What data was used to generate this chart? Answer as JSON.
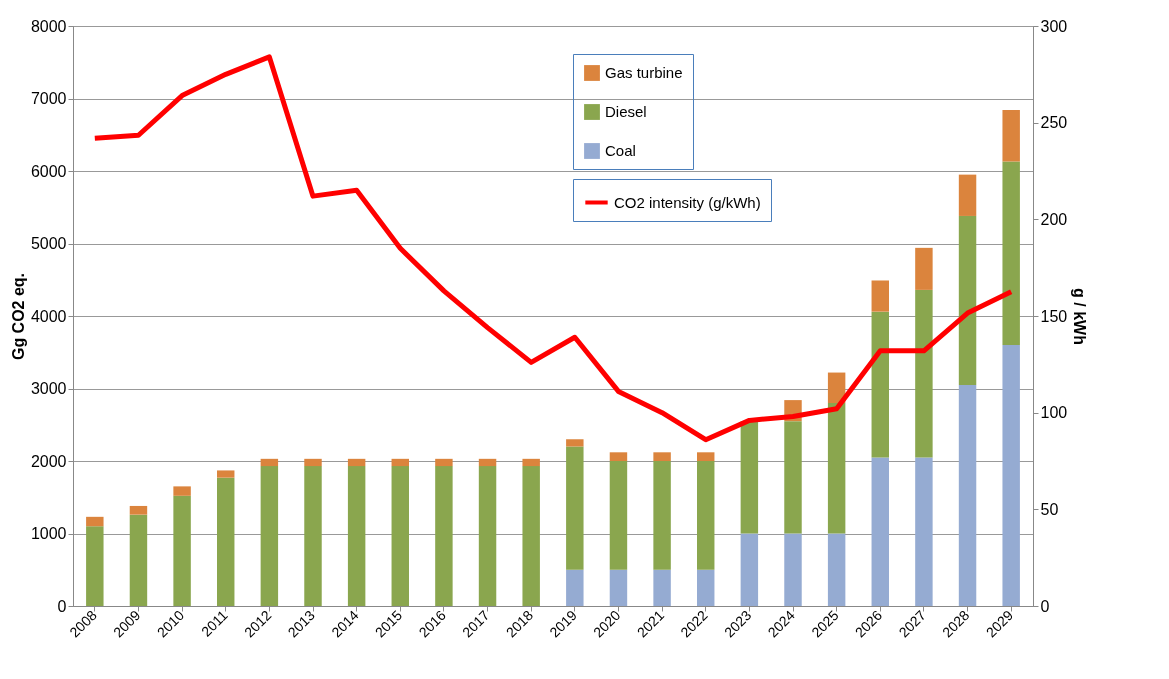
{
  "chart_data": {
    "type": "bar",
    "stacked": true,
    "categories": [
      "2008",
      "2009",
      "2010",
      "2011",
      "2012",
      "2013",
      "2014",
      "2015",
      "2016",
      "2017",
      "2018",
      "2019",
      "2020",
      "2021",
      "2022",
      "2023",
      "2024",
      "2025",
      "2026",
      "2027",
      "2028",
      "2029"
    ],
    "ylabel": "Gg CO2 eq.",
    "y2label": "g / kWh",
    "ylim": [
      0,
      8000
    ],
    "yticks": [
      0,
      1000,
      2000,
      3000,
      4000,
      5000,
      6000,
      7000,
      8000
    ],
    "y2lim": [
      0,
      300
    ],
    "y2ticks": [
      0,
      50,
      100,
      150,
      200,
      250,
      300
    ],
    "grid": "y",
    "legend": "top right",
    "series": [
      {
        "name": "Coal",
        "color": "#95abd2",
        "values": [
          0,
          0,
          0,
          0,
          0,
          0,
          0,
          0,
          0,
          0,
          0,
          500,
          500,
          500,
          500,
          1000,
          1000,
          1000,
          2050,
          2050,
          3050,
          3600
        ]
      },
      {
        "name": "Diesel",
        "color": "#8aa64e",
        "values": [
          1100,
          1260,
          1520,
          1770,
          1930,
          1930,
          1930,
          1930,
          1930,
          1930,
          1930,
          1700,
          1500,
          1500,
          1500,
          1550,
          1550,
          1800,
          2010,
          2310,
          2330,
          2530
        ]
      },
      {
        "name": "Gas turbine",
        "color": "#db843d",
        "values": [
          130,
          120,
          130,
          100,
          100,
          100,
          100,
          100,
          100,
          100,
          100,
          100,
          120,
          120,
          120,
          null,
          290,
          420,
          430,
          580,
          570,
          710
        ]
      },
      {
        "name": "CO2 intensity (g/kWh)",
        "type": "line",
        "axis": "y2",
        "color": "#ff0000",
        "values": [
          242,
          243.5,
          264,
          275,
          284,
          212,
          215,
          185,
          163,
          144,
          126,
          139,
          111,
          100,
          86,
          96,
          98,
          102,
          132,
          132,
          151.5,
          162.6
        ]
      }
    ]
  }
}
